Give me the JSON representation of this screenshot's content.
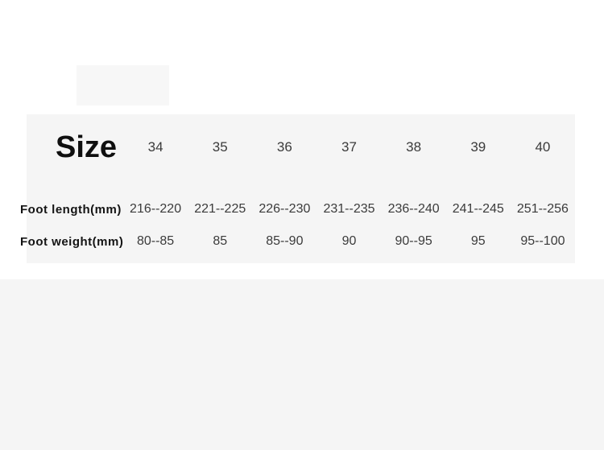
{
  "chart_data": {
    "type": "table",
    "title": "Size",
    "columns": [
      "34",
      "35",
      "36",
      "37",
      "38",
      "39",
      "40"
    ],
    "rows": [
      {
        "label": "Foot length(mm)",
        "values": [
          "216--220",
          "221--225",
          "226--230",
          "231--235",
          "236--240",
          "241--245",
          "251--256"
        ]
      },
      {
        "label": "Foot weight(mm)",
        "values": [
          "80--85",
          "85",
          "85--90",
          "90",
          "90--95",
          "95",
          "95--100"
        ]
      }
    ]
  },
  "colors": {
    "page_background": "#ffffff",
    "panel_background": "#f5f5f5",
    "placeholder_background": "#f7f7f7",
    "bottom_band_background": "#f5f5f5",
    "title_text": "#0f0f0f",
    "label_text": "#141414",
    "value_text": "#3b3b3b"
  }
}
